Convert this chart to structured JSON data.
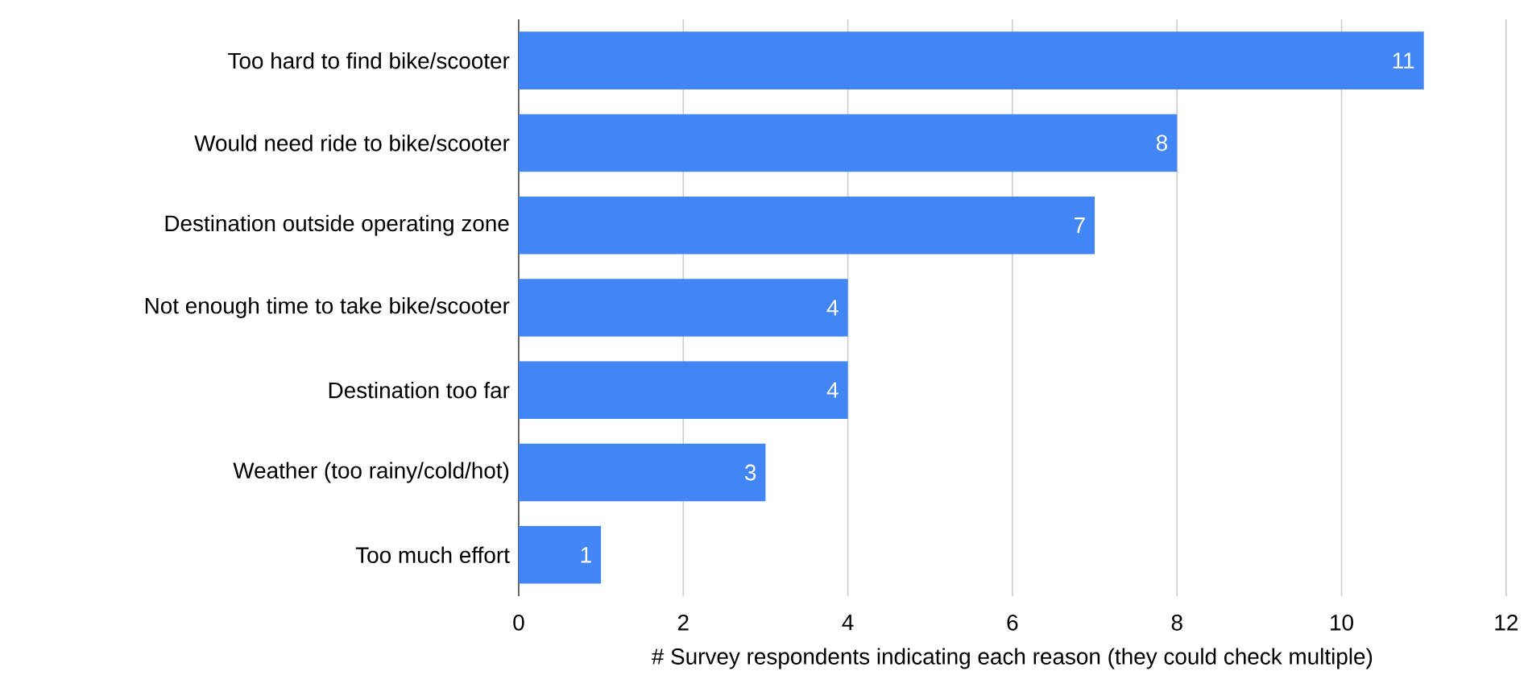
{
  "chart_data": {
    "type": "bar",
    "orientation": "horizontal",
    "xlabel": "# Survey respondents indicating each reason (they could check multiple)",
    "categories": [
      "Too hard to find bike/scooter",
      "Would need ride to bike/scooter",
      "Destination outside operating zone",
      "Not enough time to take bike/scooter",
      "Destination too far",
      "Weather (too rainy/cold/hot)",
      "Too much effort"
    ],
    "values": [
      11,
      8,
      7,
      4,
      4,
      3,
      1
    ],
    "color": "#4285f4",
    "xlim": [
      0,
      12
    ],
    "xticks": [
      0,
      2,
      4,
      6,
      8,
      10,
      12
    ],
    "grid": "x",
    "data_labels": true
  }
}
